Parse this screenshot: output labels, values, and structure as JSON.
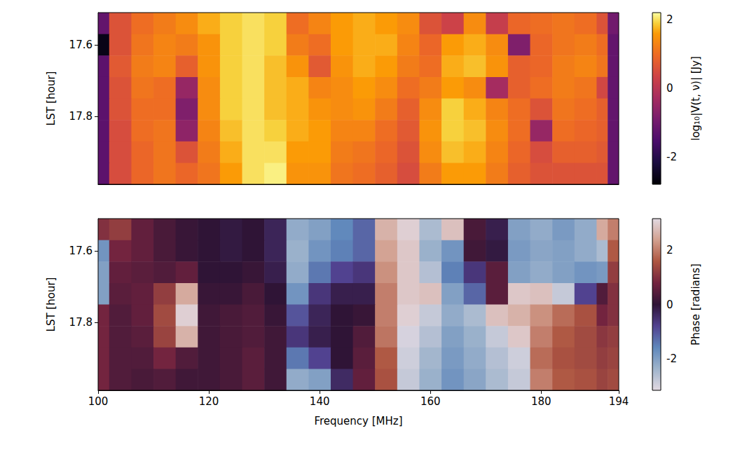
{
  "chart_data": [
    {
      "type": "heatmap",
      "ylabel": "LST [hour]",
      "xlim": [
        100,
        194
      ],
      "ylim": [
        17.51,
        17.99
      ],
      "yticks": [
        17.6,
        17.8
      ],
      "tick_labels": "y",
      "color": "inferno",
      "colorbar": {
        "label": "log₁₀|V(t, ν)| [Jy]",
        "range": [
          -2.8,
          2.2
        ],
        "ticks": [
          -2,
          0,
          2
        ]
      },
      "x_edges": [
        100,
        102,
        106,
        110,
        114,
        118,
        122,
        126,
        130,
        134,
        138,
        142,
        146,
        150,
        154,
        158,
        162,
        166,
        170,
        174,
        178,
        182,
        186,
        190,
        192,
        194
      ],
      "y_edges": [
        17.51,
        17.57,
        17.63,
        17.69,
        17.75,
        17.81,
        17.87,
        17.93,
        17.99
      ],
      "values": [
        [
          -1.2,
          0.6,
          1.0,
          1.2,
          1.4,
          1.7,
          1.9,
          2.0,
          1.9,
          1.0,
          1.3,
          1.6,
          1.7,
          1.6,
          1.4,
          0.6,
          0.3,
          1.4,
          0.2,
          0.9,
          1.0,
          1.1,
          1.0,
          0.6,
          -1.0
        ],
        [
          -2.6,
          0.6,
          1.1,
          1.3,
          1.2,
          1.5,
          1.9,
          2.0,
          1.9,
          1.2,
          1.0,
          1.6,
          1.7,
          1.7,
          1.3,
          0.9,
          1.6,
          1.7,
          1.4,
          -0.8,
          0.9,
          1.1,
          1.2,
          1.0,
          -1.2
        ],
        [
          -1.3,
          0.7,
          1.2,
          1.3,
          0.8,
          1.5,
          1.9,
          2.0,
          1.8,
          1.5,
          0.7,
          1.5,
          1.7,
          1.6,
          1.2,
          1.0,
          1.7,
          1.8,
          1.5,
          0.8,
          0.9,
          1.2,
          1.3,
          1.1,
          -1.2
        ],
        [
          -1.3,
          0.6,
          1.1,
          1.0,
          -0.5,
          1.4,
          1.9,
          2.0,
          1.8,
          1.7,
          1.3,
          1.4,
          1.6,
          1.4,
          1.0,
          1.2,
          1.6,
          1.4,
          -0.3,
          0.8,
          1.0,
          1.2,
          1.1,
          0.4,
          -1.2
        ],
        [
          -1.3,
          0.6,
          1.0,
          1.0,
          -0.8,
          1.4,
          1.9,
          2.0,
          1.8,
          1.7,
          1.5,
          1.4,
          1.5,
          1.2,
          0.8,
          1.4,
          1.9,
          1.7,
          1.3,
          1.0,
          0.6,
          1.1,
          1.0,
          0.8,
          -1.2
        ],
        [
          -1.3,
          0.5,
          1.0,
          1.1,
          -0.6,
          1.3,
          1.8,
          2.0,
          1.9,
          1.7,
          1.6,
          1.3,
          1.3,
          1.0,
          0.7,
          1.5,
          1.9,
          1.8,
          1.4,
          1.0,
          -0.5,
          1.0,
          0.9,
          0.8,
          -1.2
        ],
        [
          -1.3,
          0.5,
          0.9,
          1.1,
          0.6,
          1.2,
          1.7,
          2.0,
          2.0,
          1.6,
          1.6,
          1.2,
          1.1,
          0.9,
          0.6,
          1.4,
          1.8,
          1.7,
          1.3,
          0.9,
          0.5,
          0.8,
          0.8,
          0.7,
          -1.2
        ],
        [
          -1.3,
          0.5,
          0.9,
          1.1,
          0.9,
          1.1,
          1.6,
          2.0,
          2.1,
          1.5,
          1.5,
          1.1,
          1.0,
          0.8,
          0.5,
          1.2,
          1.6,
          1.6,
          1.2,
          0.8,
          0.6,
          0.6,
          0.6,
          0.6,
          -1.2
        ]
      ]
    },
    {
      "type": "heatmap",
      "xlabel": "Frequency [MHz]",
      "ylabel": "LST [hour]",
      "xlim": [
        100,
        194
      ],
      "ylim": [
        17.51,
        17.99
      ],
      "xticks": [
        100,
        120,
        140,
        160,
        180
      ],
      "yticks": [
        17.6,
        17.8
      ],
      "color": "twilight",
      "colorbar": {
        "label": "Phase [radians]",
        "range": [
          -3.14159,
          3.14159
        ],
        "ticks": [
          -2,
          0,
          2
        ]
      },
      "x_edges": [
        100,
        102,
        106,
        110,
        114,
        118,
        122,
        126,
        130,
        134,
        138,
        142,
        146,
        150,
        154,
        158,
        162,
        166,
        170,
        174,
        178,
        182,
        186,
        190,
        192,
        194
      ],
      "y_edges": [
        17.51,
        17.57,
        17.63,
        17.69,
        17.75,
        17.81,
        17.87,
        17.93,
        17.99
      ],
      "values": [
        [
          1.0,
          1.2,
          0.6,
          0.3,
          0.1,
          0.0,
          -0.1,
          0.0,
          -0.3,
          -2.2,
          -2.0,
          -1.6,
          -1.2,
          2.6,
          3.0,
          -2.5,
          2.8,
          0.3,
          -0.2,
          -2.0,
          -2.2,
          -1.9,
          -2.2,
          2.5,
          2.0
        ],
        [
          -1.8,
          0.8,
          0.6,
          0.3,
          0.1,
          0.0,
          -0.1,
          0.0,
          -0.3,
          -2.3,
          -1.8,
          -1.5,
          -1.2,
          2.4,
          2.9,
          -2.3,
          -1.8,
          0.2,
          -0.1,
          -1.9,
          -2.1,
          -2.0,
          -2.2,
          -2.5,
          1.6
        ],
        [
          -2.0,
          0.6,
          0.5,
          0.4,
          0.6,
          0.0,
          0.0,
          0.1,
          -0.2,
          -2.2,
          -1.4,
          -0.8,
          -0.6,
          2.2,
          2.9,
          -2.6,
          -1.5,
          -0.6,
          0.5,
          -2.0,
          -2.2,
          -2.0,
          -1.8,
          -1.9,
          1.2
        ],
        [
          -2.0,
          0.5,
          0.6,
          1.2,
          2.5,
          0.1,
          0.1,
          0.3,
          0.0,
          -1.8,
          -0.6,
          -0.2,
          -0.2,
          2.0,
          2.9,
          2.8,
          -2.0,
          -1.2,
          0.5,
          2.9,
          2.8,
          -2.8,
          -0.8,
          0.4,
          1.0
        ],
        [
          0.8,
          0.4,
          0.6,
          1.4,
          3.0,
          0.2,
          0.3,
          0.4,
          0.1,
          -1.0,
          -0.3,
          0.0,
          0.1,
          2.0,
          3.0,
          -2.8,
          -2.2,
          -2.5,
          2.8,
          2.6,
          2.2,
          1.8,
          1.5,
          0.8,
          1.0
        ],
        [
          0.8,
          0.4,
          0.5,
          1.3,
          2.6,
          0.2,
          0.3,
          0.4,
          0.2,
          -0.6,
          -0.2,
          0.0,
          0.4,
          1.9,
          -3.0,
          -2.6,
          -2.0,
          -2.3,
          -2.8,
          2.9,
          2.0,
          1.6,
          1.4,
          1.1,
          1.2
        ],
        [
          0.8,
          0.4,
          0.4,
          0.8,
          0.4,
          0.2,
          0.3,
          0.5,
          0.2,
          -1.4,
          -0.8,
          0.0,
          0.5,
          1.6,
          -2.9,
          -2.4,
          -1.9,
          -2.2,
          -2.6,
          -2.9,
          1.8,
          1.5,
          1.4,
          1.2,
          1.3
        ],
        [
          0.8,
          0.4,
          0.3,
          0.4,
          0.2,
          0.2,
          0.3,
          0.5,
          0.2,
          -2.2,
          -2.0,
          -0.4,
          0.6,
          1.5,
          -2.8,
          -2.3,
          -1.8,
          -2.1,
          -2.5,
          -2.8,
          2.0,
          1.6,
          1.5,
          1.3,
          1.4
        ]
      ]
    }
  ]
}
